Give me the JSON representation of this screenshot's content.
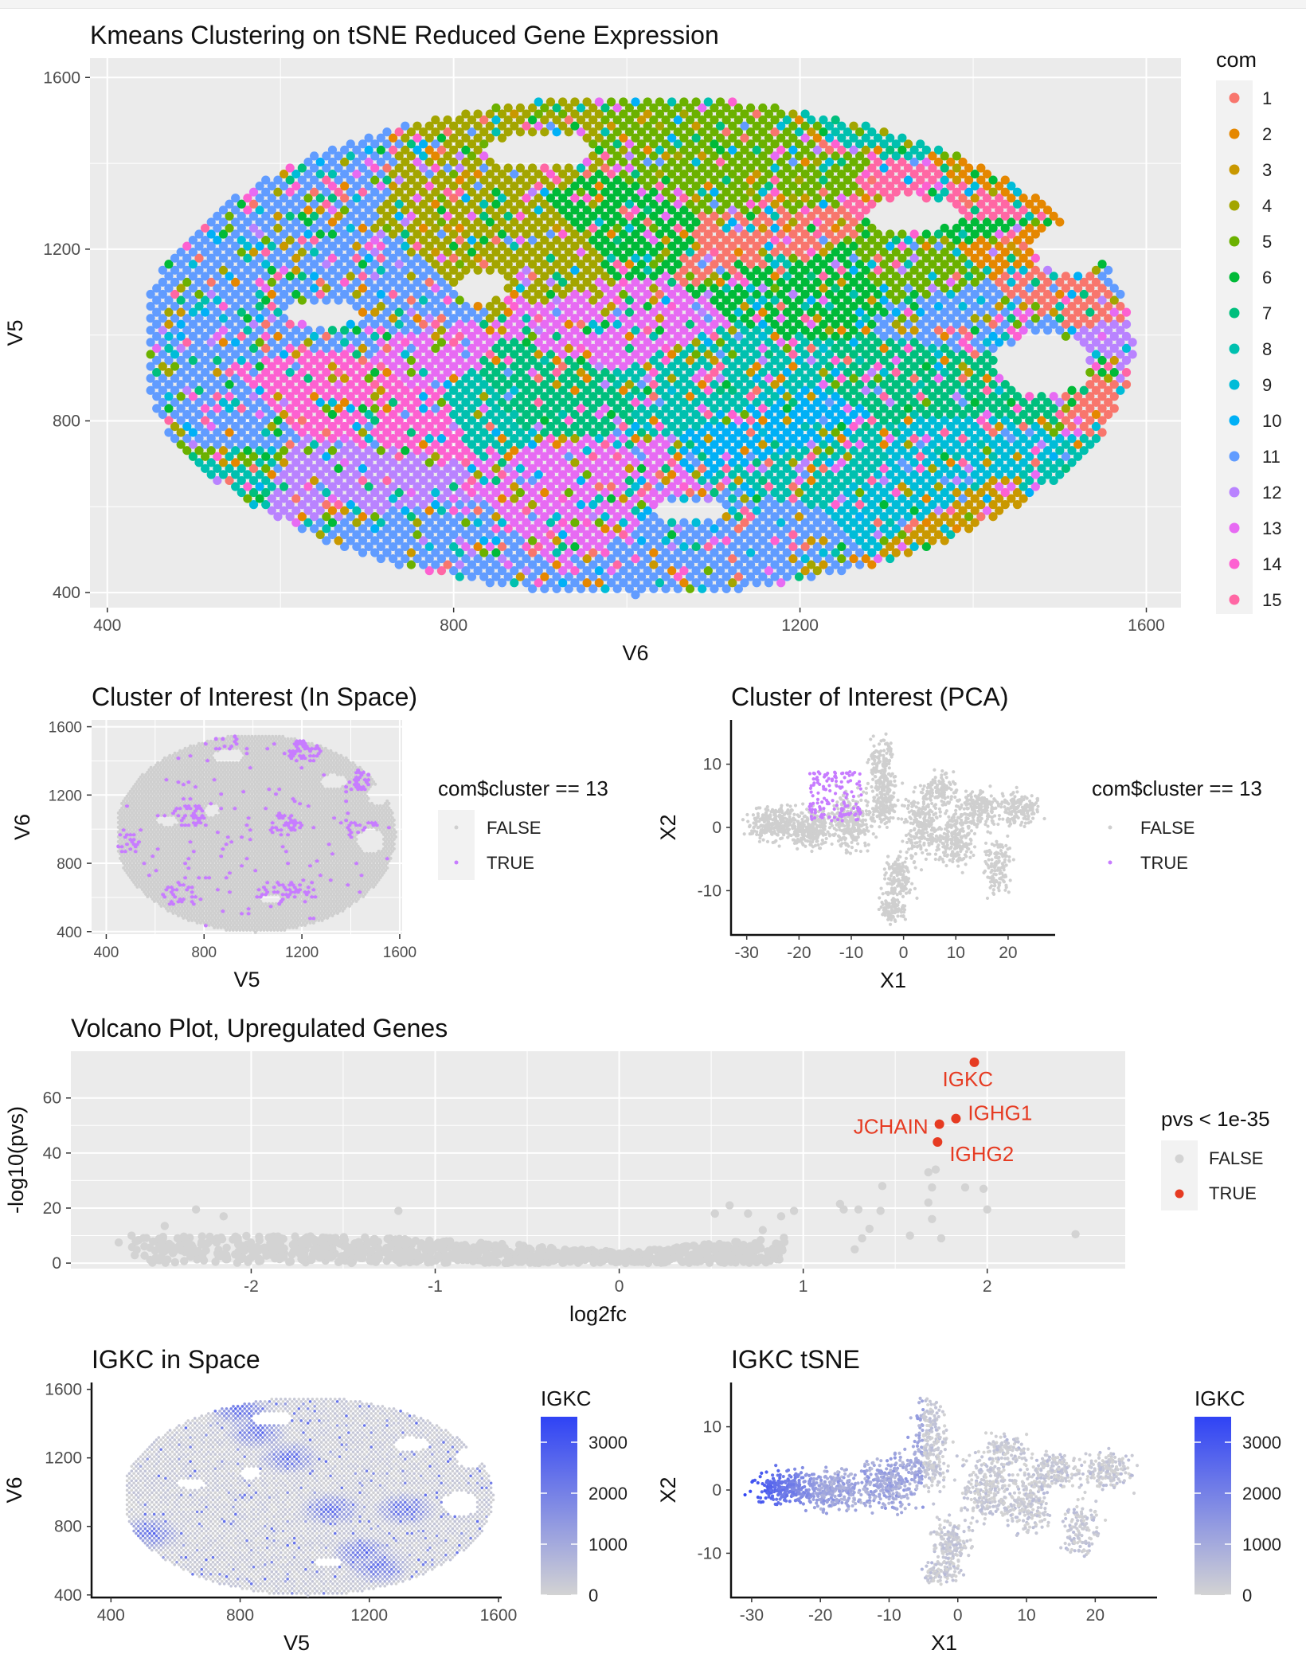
{
  "chart_data": [
    {
      "id": "kmeans",
      "type": "scatter",
      "title": "Kmeans Clustering on tSNE Reduced Gene Expression",
      "xlabel": "V6",
      "ylabel": "V5",
      "xlim": [
        380,
        1640
      ],
      "ylim": [
        365,
        1645
      ],
      "xticks": [
        400,
        800,
        1200,
        1600
      ],
      "yticks": [
        400,
        800,
        1200,
        1600
      ],
      "grid": true,
      "legend": {
        "title": "com",
        "position": "right",
        "labels": [
          "1",
          "2",
          "3",
          "4",
          "5",
          "6",
          "7",
          "8",
          "9",
          "10",
          "11",
          "12",
          "13",
          "14",
          "15"
        ]
      },
      "palette": [
        "#F8766D",
        "#E58700",
        "#C99800",
        "#A3A500",
        "#6BB100",
        "#00BA38",
        "#00BF7D",
        "#00C0AF",
        "#00BCD8",
        "#00B0F6",
        "#619CFF",
        "#B983FF",
        "#E76BF3",
        "#FD61D1",
        "#FF67A4"
      ],
      "point_grid": {
        "x_range": [
          450,
          1590
        ],
        "y_range": [
          395,
          1545
        ],
        "x_step": 14,
        "y_step": 14
      },
      "extent": "ellipse centered near (1010, 975), x half-width ~570, y half-width ~575"
    },
    {
      "id": "coi_space",
      "type": "scatter",
      "title": "Cluster of Interest (In Space)",
      "xlabel": "V5",
      "ylabel": "V6",
      "xlim": [
        340,
        1610
      ],
      "ylim": [
        385,
        1640
      ],
      "xticks": [
        400,
        800,
        1200,
        1600
      ],
      "yticks": [
        400,
        800,
        1200,
        1600
      ],
      "grid": true,
      "legend": {
        "title": "com$cluster == 13",
        "position": "right",
        "labels": [
          "FALSE",
          "TRUE"
        ]
      },
      "colors": {
        "FALSE": "#cfcfcf",
        "TRUE": "#c77cff"
      },
      "highlighted_cluster": 13
    },
    {
      "id": "coi_pca",
      "type": "scatter",
      "title": "Cluster of Interest (PCA)",
      "xlabel": "X1",
      "ylabel": "X2",
      "xlim": [
        -33,
        29
      ],
      "ylim": [
        -17,
        17
      ],
      "xticks": [
        -30,
        -20,
        -10,
        0,
        10,
        20
      ],
      "yticks": [
        -10,
        0,
        10
      ],
      "grid": false,
      "legend": {
        "title": "com$cluster == 13",
        "position": "right",
        "labels": [
          "FALSE",
          "TRUE"
        ]
      },
      "colors": {
        "FALSE": "#cfcfcf",
        "TRUE": "#c77cff"
      },
      "true_region": {
        "x": [
          -18,
          -8
        ],
        "y": [
          1,
          9
        ]
      }
    },
    {
      "id": "volcano",
      "type": "scatter",
      "title": "Volcano Plot, Upregulated Genes",
      "xlabel": "log2fc",
      "ylabel": "-log10(pvs)",
      "xlim": [
        -2.98,
        2.75
      ],
      "ylim": [
        -2,
        77
      ],
      "xticks": [
        -2,
        -1,
        0,
        1,
        2
      ],
      "yticks": [
        0,
        20,
        40,
        60
      ],
      "grid": true,
      "legend": {
        "title": "pvs < 1e-35",
        "position": "right",
        "labels": [
          "FALSE",
          "TRUE"
        ]
      },
      "colors": {
        "FALSE": "#d3d3d3",
        "TRUE": "#e63b22"
      },
      "significant_genes": [
        {
          "gene": "IGKC",
          "log2fc": 1.93,
          "neglog10p": 73
        },
        {
          "gene": "IGHG1",
          "log2fc": 1.83,
          "neglog10p": 52.5
        },
        {
          "gene": "JCHAIN",
          "log2fc": 1.74,
          "neglog10p": 50.5
        },
        {
          "gene": "IGHG2",
          "log2fc": 1.73,
          "neglog10p": 44
        }
      ],
      "other_points": [
        [
          2.48,
          10.5
        ],
        [
          1.98,
          27
        ],
        [
          1.88,
          27.5
        ],
        [
          2.0,
          19.5
        ],
        [
          1.72,
          34
        ],
        [
          1.68,
          33
        ],
        [
          1.7,
          27.5
        ],
        [
          1.68,
          22
        ],
        [
          1.7,
          16
        ],
        [
          1.75,
          9
        ],
        [
          1.58,
          10
        ],
        [
          1.43,
          28
        ],
        [
          1.42,
          19
        ],
        [
          1.36,
          12.5
        ],
        [
          1.32,
          9
        ],
        [
          1.28,
          5
        ],
        [
          1.3,
          19.5
        ],
        [
          1.2,
          21.5
        ],
        [
          1.22,
          19.5
        ],
        [
          0.95,
          19
        ],
        [
          0.88,
          17
        ],
        [
          0.78,
          12
        ],
        [
          0.7,
          18
        ],
        [
          0.6,
          21
        ],
        [
          0.52,
          18
        ],
        [
          -2.72,
          7.5
        ],
        [
          -2.65,
          10
        ],
        [
          -2.47,
          13.5
        ],
        [
          -2.4,
          9
        ],
        [
          -2.3,
          19.5
        ],
        [
          -2.15,
          17
        ],
        [
          -1.2,
          19
        ]
      ],
      "bulk": "dense band of non-significant genes from log2fc -2.7 to 1.0, -log10(pvs) mostly 0-18"
    },
    {
      "id": "igkc_space",
      "type": "scatter",
      "title": "IGKC in Space",
      "xlabel": "V5",
      "ylabel": "V6",
      "xlim": [
        340,
        1610
      ],
      "ylim": [
        385,
        1640
      ],
      "xticks": [
        400,
        800,
        1200,
        1600
      ],
      "yticks": [
        400,
        800,
        1200,
        1600
      ],
      "grid": false,
      "legend": {
        "title": "IGKC",
        "position": "right",
        "type": "colorbar",
        "range": [
          0,
          3500
        ],
        "ticks": [
          0,
          1000,
          2000,
          3000
        ]
      },
      "gradient": {
        "low": "#d3d3d3",
        "high": "#2f43f5"
      }
    },
    {
      "id": "igkc_tsne",
      "type": "scatter",
      "title": "IGKC tSNE",
      "xlabel": "X1",
      "ylabel": "X2",
      "xlim": [
        -33,
        29
      ],
      "ylim": [
        -17,
        17
      ],
      "xticks": [
        -30,
        -20,
        -10,
        0,
        10,
        20
      ],
      "yticks": [
        -10,
        0,
        10
      ],
      "grid": false,
      "legend": {
        "title": "IGKC",
        "position": "right",
        "type": "colorbar",
        "range": [
          0,
          3500
        ],
        "ticks": [
          0,
          1000,
          2000,
          3000
        ]
      },
      "gradient": {
        "low": "#d3d3d3",
        "high": "#2f43f5"
      },
      "high_expression_region": "left lobe, X1 -31 to -20, X2 -6 to 2"
    }
  ]
}
